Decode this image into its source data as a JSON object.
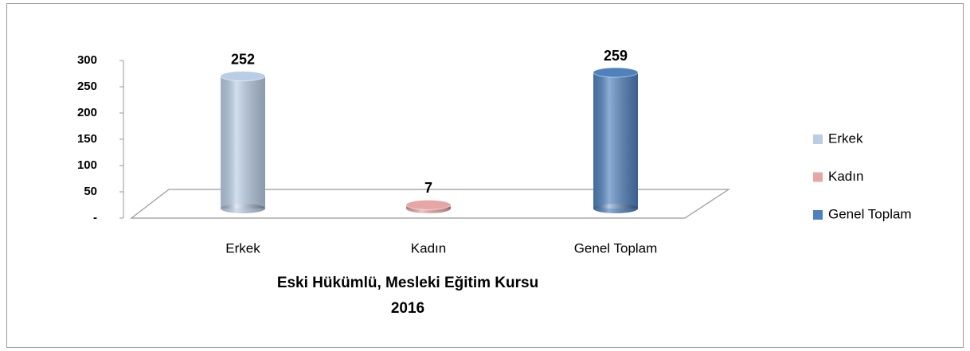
{
  "chart_data": {
    "type": "bar3d",
    "title": "Eski Hükümlü, Mesleki Eğitim Kursu",
    "subtitle": "2016",
    "categories": [
      "Erkek",
      "Kadın",
      "Genel Toplam"
    ],
    "values": [
      252,
      7,
      259
    ],
    "colors": [
      "#b9cde5",
      "#e6a6a5",
      "#4f81bd"
    ],
    "ylim": [
      0,
      300
    ],
    "yticks": [
      {
        "value": 0,
        "label": "-"
      },
      50,
      100,
      150,
      200,
      250,
      300
    ],
    "legend": "right"
  }
}
